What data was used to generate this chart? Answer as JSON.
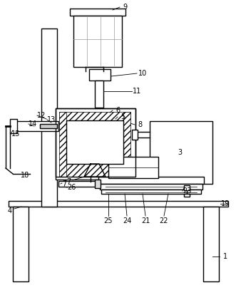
{
  "bg_color": "#ffffff",
  "line_color": "#000000",
  "lw": 1.0,
  "figsize": [
    3.31,
    4.07
  ],
  "dpi": 100
}
